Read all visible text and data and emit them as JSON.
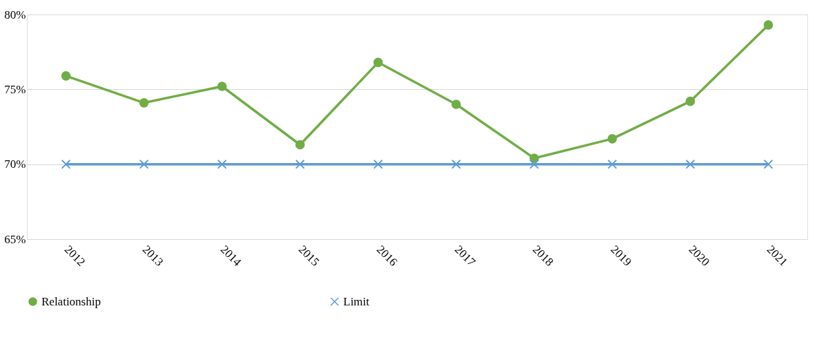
{
  "chart_data": {
    "type": "line",
    "categories": [
      "2012",
      "2013",
      "2014",
      "2015",
      "2016",
      "2017",
      "2018",
      "2019",
      "2020",
      "2021"
    ],
    "series": [
      {
        "name": "Relationship",
        "color": "#70ad47",
        "marker": "circle",
        "values": [
          75.9,
          74.1,
          75.2,
          71.3,
          76.8,
          74.0,
          70.4,
          71.7,
          74.2,
          79.3
        ]
      },
      {
        "name": "Limit",
        "color": "#5b9bd5",
        "marker": "cross",
        "values": [
          70,
          70,
          70,
          70,
          70,
          70,
          70,
          70,
          70,
          70
        ]
      }
    ],
    "ylim": [
      65,
      80
    ],
    "yticks": [
      {
        "value": 65,
        "label": "65%"
      },
      {
        "value": 70,
        "label": "70%"
      },
      {
        "value": 75,
        "label": "75%"
      },
      {
        "value": 80,
        "label": "80%"
      }
    ],
    "grid": "y",
    "legend": "bottom",
    "line_style": "solid"
  }
}
